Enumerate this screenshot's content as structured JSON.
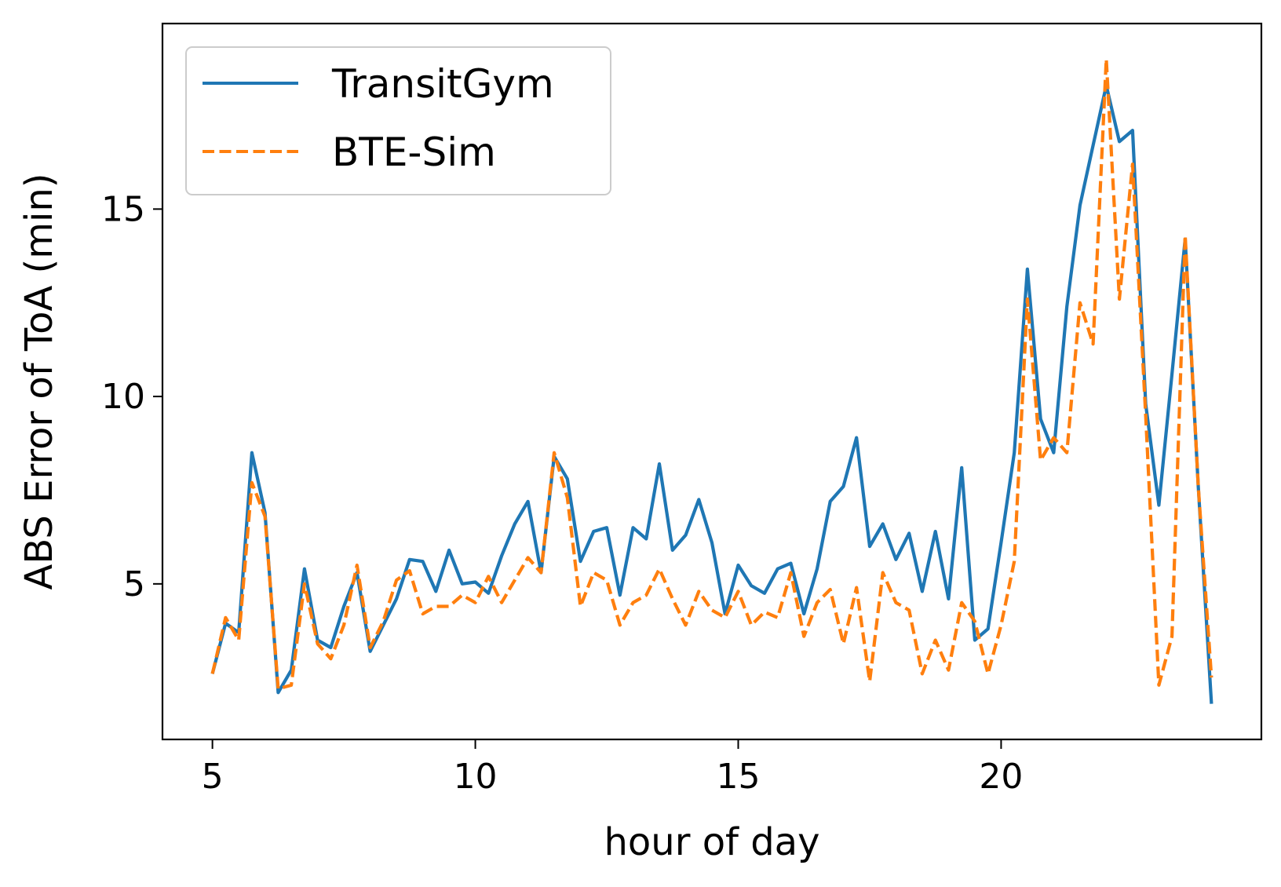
{
  "chart_data": {
    "type": "line",
    "title": "",
    "xlabel": "hour of day",
    "ylabel": "ABS Error of ToA (min)",
    "xlim": [
      4.05,
      24.95
    ],
    "ylim": [
      0.85,
      19.95
    ],
    "xticks": [
      5,
      10,
      15,
      20
    ],
    "yticks": [
      5,
      10,
      15
    ],
    "grid": false,
    "legend_position": "top-left",
    "series": [
      {
        "name": "TransitGym",
        "color": "#1f77b4",
        "style": "solid",
        "points": [
          [
            5.0,
            2.6
          ],
          [
            5.25,
            3.95
          ],
          [
            5.5,
            3.7
          ],
          [
            5.75,
            8.5
          ],
          [
            6.0,
            6.9
          ],
          [
            6.25,
            2.1
          ],
          [
            6.5,
            2.7
          ],
          [
            6.75,
            5.4
          ],
          [
            7.0,
            3.5
          ],
          [
            7.25,
            3.3
          ],
          [
            7.5,
            4.4
          ],
          [
            7.75,
            5.3
          ],
          [
            8.0,
            3.2
          ],
          [
            8.25,
            3.9
          ],
          [
            8.5,
            4.6
          ],
          [
            8.75,
            5.65
          ],
          [
            9.0,
            5.6
          ],
          [
            9.25,
            4.8
          ],
          [
            9.5,
            5.9
          ],
          [
            9.75,
            5.0
          ],
          [
            10.0,
            5.05
          ],
          [
            10.25,
            4.75
          ],
          [
            10.5,
            5.75
          ],
          [
            10.75,
            6.6
          ],
          [
            11.0,
            7.2
          ],
          [
            11.25,
            5.3
          ],
          [
            11.5,
            8.4
          ],
          [
            11.75,
            7.8
          ],
          [
            12.0,
            5.6
          ],
          [
            12.25,
            6.4
          ],
          [
            12.5,
            6.5
          ],
          [
            12.75,
            4.7
          ],
          [
            13.0,
            6.5
          ],
          [
            13.25,
            6.2
          ],
          [
            13.5,
            8.2
          ],
          [
            13.75,
            5.9
          ],
          [
            14.0,
            6.3
          ],
          [
            14.25,
            7.25
          ],
          [
            14.5,
            6.1
          ],
          [
            14.75,
            4.2
          ],
          [
            15.0,
            5.5
          ],
          [
            15.25,
            4.95
          ],
          [
            15.5,
            4.75
          ],
          [
            15.75,
            5.4
          ],
          [
            16.0,
            5.55
          ],
          [
            16.25,
            4.2
          ],
          [
            16.5,
            5.4
          ],
          [
            16.75,
            7.2
          ],
          [
            17.0,
            7.6
          ],
          [
            17.25,
            8.9
          ],
          [
            17.5,
            6.0
          ],
          [
            17.75,
            6.6
          ],
          [
            18.0,
            5.65
          ],
          [
            18.25,
            6.35
          ],
          [
            18.5,
            4.8
          ],
          [
            18.75,
            6.4
          ],
          [
            19.0,
            4.6
          ],
          [
            19.25,
            8.1
          ],
          [
            19.5,
            3.5
          ],
          [
            19.75,
            3.8
          ],
          [
            20.0,
            6.1
          ],
          [
            20.25,
            8.5
          ],
          [
            20.5,
            13.4
          ],
          [
            20.75,
            9.4
          ],
          [
            21.0,
            8.5
          ],
          [
            21.25,
            12.4
          ],
          [
            21.5,
            15.1
          ],
          [
            21.75,
            16.7
          ],
          [
            22.0,
            18.3
          ],
          [
            22.25,
            16.8
          ],
          [
            22.5,
            17.1
          ],
          [
            22.75,
            9.8
          ],
          [
            23.0,
            7.1
          ],
          [
            23.25,
            10.6
          ],
          [
            23.5,
            14.2
          ],
          [
            23.75,
            7.6
          ],
          [
            24.0,
            1.8
          ]
        ]
      },
      {
        "name": "BTE-Sim",
        "color": "#ff7f0e",
        "style": "dashed",
        "points": [
          [
            5.0,
            2.6
          ],
          [
            5.25,
            4.1
          ],
          [
            5.5,
            3.5
          ],
          [
            5.75,
            7.7
          ],
          [
            6.0,
            6.8
          ],
          [
            6.25,
            2.2
          ],
          [
            6.5,
            2.3
          ],
          [
            6.75,
            5.0
          ],
          [
            7.0,
            3.4
          ],
          [
            7.25,
            3.0
          ],
          [
            7.5,
            3.9
          ],
          [
            7.75,
            5.5
          ],
          [
            8.0,
            3.3
          ],
          [
            8.25,
            4.0
          ],
          [
            8.5,
            5.1
          ],
          [
            8.75,
            5.35
          ],
          [
            9.0,
            4.2
          ],
          [
            9.25,
            4.4
          ],
          [
            9.5,
            4.4
          ],
          [
            9.75,
            4.7
          ],
          [
            10.0,
            4.5
          ],
          [
            10.25,
            5.2
          ],
          [
            10.5,
            4.5
          ],
          [
            10.75,
            5.1
          ],
          [
            11.0,
            5.7
          ],
          [
            11.25,
            5.3
          ],
          [
            11.5,
            8.5
          ],
          [
            11.75,
            7.3
          ],
          [
            12.0,
            4.4
          ],
          [
            12.25,
            5.3
          ],
          [
            12.5,
            5.1
          ],
          [
            12.75,
            3.9
          ],
          [
            13.0,
            4.5
          ],
          [
            13.25,
            4.7
          ],
          [
            13.5,
            5.4
          ],
          [
            13.75,
            4.6
          ],
          [
            14.0,
            3.9
          ],
          [
            14.25,
            4.8
          ],
          [
            14.5,
            4.3
          ],
          [
            14.75,
            4.1
          ],
          [
            15.0,
            4.8
          ],
          [
            15.25,
            3.9
          ],
          [
            15.5,
            4.25
          ],
          [
            15.75,
            4.1
          ],
          [
            16.0,
            5.3
          ],
          [
            16.25,
            3.6
          ],
          [
            16.5,
            4.5
          ],
          [
            16.75,
            4.85
          ],
          [
            17.0,
            3.4
          ],
          [
            17.25,
            4.9
          ],
          [
            17.5,
            2.4
          ],
          [
            17.75,
            5.3
          ],
          [
            18.0,
            4.5
          ],
          [
            18.25,
            4.3
          ],
          [
            18.5,
            2.6
          ],
          [
            18.75,
            3.5
          ],
          [
            19.0,
            2.7
          ],
          [
            19.25,
            4.5
          ],
          [
            19.5,
            4.0
          ],
          [
            19.75,
            2.6
          ],
          [
            20.0,
            3.9
          ],
          [
            20.25,
            5.6
          ],
          [
            20.5,
            12.6
          ],
          [
            20.75,
            8.3
          ],
          [
            21.0,
            8.9
          ],
          [
            21.25,
            8.5
          ],
          [
            21.5,
            12.5
          ],
          [
            21.75,
            11.4
          ],
          [
            22.0,
            19.0
          ],
          [
            22.25,
            12.6
          ],
          [
            22.5,
            16.2
          ],
          [
            22.75,
            9.5
          ],
          [
            23.0,
            2.3
          ],
          [
            23.25,
            3.6
          ],
          [
            23.5,
            14.3
          ],
          [
            23.75,
            7.6
          ],
          [
            24.0,
            2.5
          ]
        ]
      }
    ]
  }
}
